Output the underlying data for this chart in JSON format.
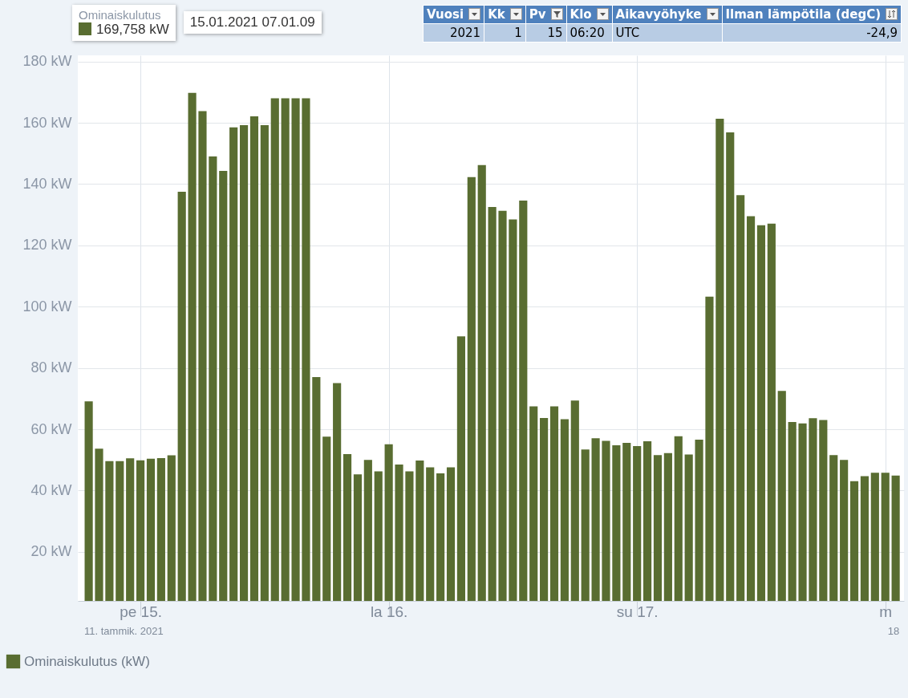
{
  "chart_data": {
    "type": "bar",
    "x": [
      "2021-01-14T19:00",
      "2021-01-14T20:00",
      "2021-01-14T21:00",
      "2021-01-14T22:00",
      "2021-01-14T23:00",
      "2021-01-15T00:00",
      "2021-01-15T01:00",
      "2021-01-15T02:00",
      "2021-01-15T03:00",
      "2021-01-15T04:00",
      "2021-01-15T05:00",
      "2021-01-15T06:00",
      "2021-01-15T07:00",
      "2021-01-15T08:00",
      "2021-01-15T09:00",
      "2021-01-15T10:00",
      "2021-01-15T11:00",
      "2021-01-15T12:00",
      "2021-01-15T13:00",
      "2021-01-15T14:00",
      "2021-01-15T15:00",
      "2021-01-15T16:00",
      "2021-01-15T17:00",
      "2021-01-15T18:00",
      "2021-01-15T19:00",
      "2021-01-15T20:00",
      "2021-01-15T21:00",
      "2021-01-15T22:00",
      "2021-01-15T23:00",
      "2021-01-16T00:00",
      "2021-01-16T01:00",
      "2021-01-16T02:00",
      "2021-01-16T03:00",
      "2021-01-16T04:00",
      "2021-01-16T05:00",
      "2021-01-16T06:00",
      "2021-01-16T07:00",
      "2021-01-16T08:00",
      "2021-01-16T09:00",
      "2021-01-16T10:00",
      "2021-01-16T11:00",
      "2021-01-16T12:00",
      "2021-01-16T13:00",
      "2021-01-16T14:00",
      "2021-01-16T15:00",
      "2021-01-16T16:00",
      "2021-01-16T17:00",
      "2021-01-16T18:00",
      "2021-01-16T19:00",
      "2021-01-16T20:00",
      "2021-01-16T21:00",
      "2021-01-16T22:00",
      "2021-01-16T23:00",
      "2021-01-17T00:00",
      "2021-01-17T01:00",
      "2021-01-17T02:00",
      "2021-01-17T03:00",
      "2021-01-17T04:00",
      "2021-01-17T05:00",
      "2021-01-17T06:00",
      "2021-01-17T07:00",
      "2021-01-17T08:00",
      "2021-01-17T09:00",
      "2021-01-17T10:00",
      "2021-01-17T11:00",
      "2021-01-17T12:00",
      "2021-01-17T13:00",
      "2021-01-17T14:00",
      "2021-01-17T15:00",
      "2021-01-17T16:00",
      "2021-01-17T17:00",
      "2021-01-17T18:00",
      "2021-01-17T19:00",
      "2021-01-17T20:00",
      "2021-01-17T21:00",
      "2021-01-17T22:00",
      "2021-01-17T23:00",
      "2021-01-18T00:00",
      "2021-01-18T01:00"
    ],
    "series": [
      {
        "name": "Ominaiskulutus (kW)",
        "color": "#596d31",
        "values": [
          69.1,
          53.7,
          49.6,
          49.6,
          50.5,
          49.9,
          50.4,
          50.6,
          51.5,
          137.5,
          169.758,
          163.8,
          149.0,
          144.3,
          158.5,
          159.2,
          162.1,
          159.2,
          168,
          168,
          168,
          168,
          77.0,
          57.6,
          75.1,
          51.9,
          45.3,
          50.0,
          46.3,
          55.1,
          48.5,
          46.3,
          49.8,
          47.6,
          45.6,
          47.6,
          90.3,
          142.3,
          146.2,
          132.5,
          131.3,
          128.5,
          134.6,
          67.5,
          63.7,
          67.5,
          63.3,
          69.4,
          53.4,
          57.1,
          56.2,
          54.8,
          55.6,
          54.5,
          56.1,
          51.6,
          52.2,
          57.7,
          51.8,
          56.6,
          103.3,
          161.3,
          156.9,
          136.4,
          129.5,
          126.6,
          127.1,
          72.5,
          62.4,
          61.9,
          63.6,
          63.0,
          51.6,
          50.0,
          43.1,
          44.7,
          45.8,
          45.8,
          44.9
        ]
      }
    ],
    "xlim": [
      "2021-01-14T18:20",
      "2021-01-18T01:25"
    ],
    "xticks": [
      {
        "value": "2021-01-15T00:00",
        "label": "pe 15."
      },
      {
        "value": "2021-01-16T00:00",
        "label": "la 16."
      },
      {
        "value": "2021-01-17T00:00",
        "label": "su 17."
      },
      {
        "value": "2021-01-18T00:00",
        "label": "m"
      }
    ],
    "ylim": [
      4,
      182
    ],
    "yticks": [
      {
        "value": 20,
        "label": "20 kW"
      },
      {
        "value": 40,
        "label": "40 kW"
      },
      {
        "value": 60,
        "label": "60 kW"
      },
      {
        "value": 80,
        "label": "80 kW"
      },
      {
        "value": 100,
        "label": "100 kW"
      },
      {
        "value": 120,
        "label": "120 kW"
      },
      {
        "value": 140,
        "label": "140 kW"
      },
      {
        "value": 160,
        "label": "160 kW"
      },
      {
        "value": 180,
        "label": "180 kW"
      }
    ],
    "grid": true,
    "legend": "bottom left",
    "annotations": [
      "Vuosi",
      "Kk",
      "Pv",
      "Klo",
      "Aikavyöhyke",
      "Ilman lämpötila (degC)",
      "2021",
      "1",
      "15",
      "06:20",
      "UTC",
      "-24,9",
      "Ominaiskulutus",
      "169,758 kW",
      "15.01.2021 07.01.09",
      "11. tammik. 2021",
      "18"
    ]
  }
}
